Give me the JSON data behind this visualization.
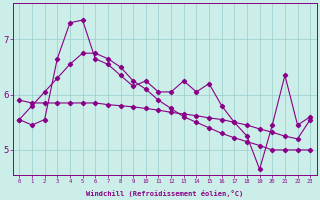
{
  "xlabel": "Windchill (Refroidissement éolien,°C)",
  "x_ticks": [
    0,
    1,
    2,
    3,
    4,
    5,
    6,
    7,
    8,
    9,
    10,
    11,
    12,
    13,
    14,
    15,
    16,
    17,
    18,
    19,
    20,
    21,
    22,
    23
  ],
  "y_ticks": [
    5,
    6,
    7
  ],
  "ylim": [
    4.55,
    7.65
  ],
  "xlim": [
    -0.5,
    23.5
  ],
  "bg_color": "#cceee8",
  "line_color": "#880088",
  "grid_color": "#99cccc",
  "series1_y": [
    5.55,
    5.45,
    5.55,
    6.65,
    7.3,
    7.35,
    6.65,
    6.55,
    6.35,
    6.15,
    6.25,
    6.05,
    6.05,
    6.25,
    6.05,
    6.2,
    5.8,
    5.5,
    5.25,
    4.65,
    5.45,
    6.35,
    5.45,
    5.6
  ],
  "series2_y": [
    5.9,
    5.85,
    5.85,
    5.85,
    5.85,
    5.85,
    5.85,
    5.82,
    5.8,
    5.78,
    5.75,
    5.72,
    5.68,
    5.65,
    5.62,
    5.58,
    5.55,
    5.5,
    5.45,
    5.38,
    5.32,
    5.25,
    5.2,
    5.55
  ],
  "series3_y": [
    5.55,
    5.8,
    6.05,
    6.3,
    6.55,
    6.75,
    6.75,
    6.65,
    6.5,
    6.25,
    6.1,
    5.9,
    5.75,
    5.6,
    5.5,
    5.4,
    5.3,
    5.22,
    5.15,
    5.08,
    5.0,
    5.0,
    5.0,
    5.0
  ]
}
